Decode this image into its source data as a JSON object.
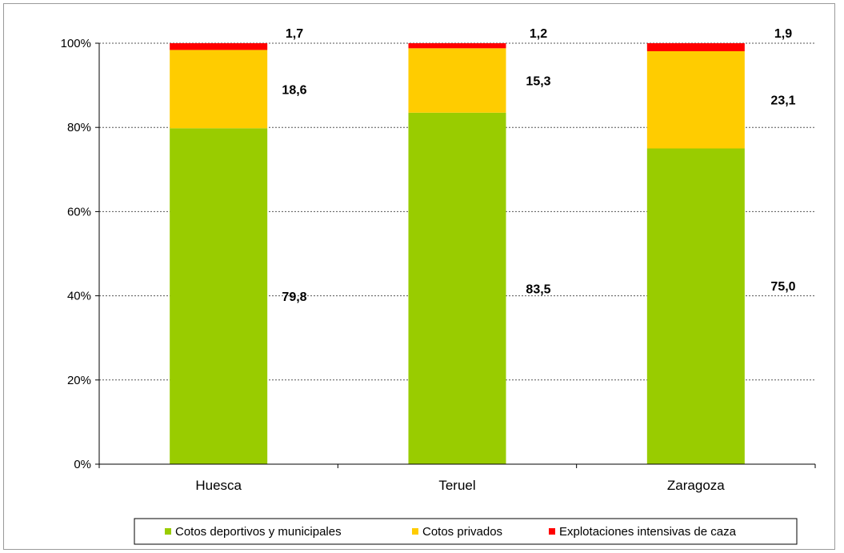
{
  "chart_data": {
    "type": "bar",
    "stacked": true,
    "percent": true,
    "categories": [
      "Huesca",
      "Teruel",
      "Zaragoza"
    ],
    "series": [
      {
        "name": "Cotos deportivos y municipales",
        "values": [
          79.8,
          83.5,
          75.0
        ],
        "labels": [
          "79,8",
          "83,5",
          "75,0"
        ],
        "color": "#99cc00"
      },
      {
        "name": "Cotos privados",
        "values": [
          18.6,
          15.3,
          23.1
        ],
        "labels": [
          "18,6",
          "15,3",
          "23,1"
        ],
        "color": "#ffcc00"
      },
      {
        "name": "Explotaciones intensivas de caza",
        "values": [
          1.7,
          1.2,
          1.9
        ],
        "labels": [
          "1,7",
          "1,2",
          "1,9"
        ],
        "color": "#ff0000"
      }
    ],
    "yticks": [
      "0%",
      "20%",
      "40%",
      "60%",
      "80%",
      "100%"
    ],
    "ylim": [
      0,
      100
    ],
    "grid": true,
    "legend_position": "bottom"
  }
}
